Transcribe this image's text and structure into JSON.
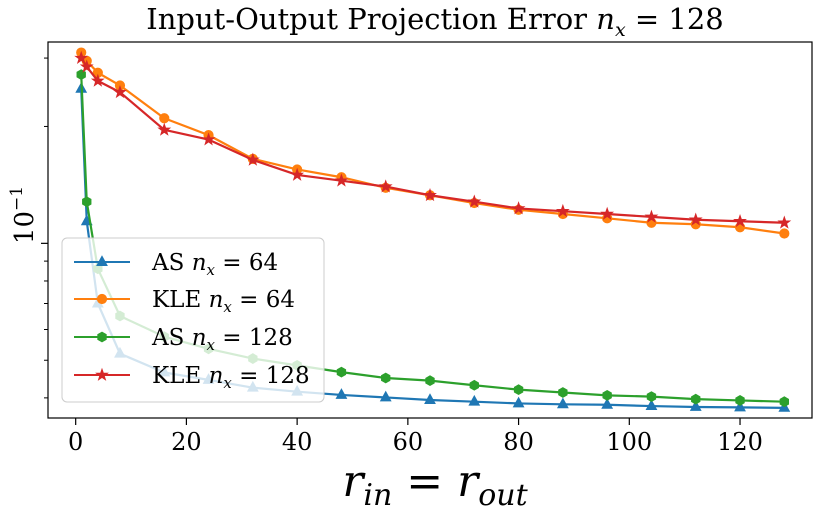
{
  "chart_data": {
    "type": "line",
    "title": "Input-Output Projection Error n_x = 128",
    "title_parts": {
      "text": "Input-Output Projection Error ",
      "var": "n",
      "sub": "x",
      "eq": " = 128"
    },
    "xlabel": "r_in = r_out",
    "xlabel_parts": {
      "r1": "r",
      "s1": "in",
      "eq": " = ",
      "r2": "r",
      "s2": "out"
    },
    "ylabel": "10^-1",
    "ylabel_parts": {
      "base": "10",
      "exp": "−1"
    },
    "xlim": [
      -5,
      133
    ],
    "ylim": [
      0.0355,
      0.33
    ],
    "yscale": "log",
    "xticks": [
      0,
      20,
      40,
      60,
      80,
      100,
      120
    ],
    "yticks_major": [
      0.1
    ],
    "legend_position": "lower-left",
    "grid": false,
    "series": [
      {
        "name": "AS n_x = 64",
        "legend": {
          "prefix": "AS ",
          "var": "n",
          "sub": "x",
          "eq": " = 64"
        },
        "color": "#1f77b4",
        "marker": "triangle",
        "x": [
          1,
          2,
          4,
          8,
          16,
          24,
          32,
          40,
          48,
          56,
          64,
          72,
          80,
          88,
          96,
          104,
          112,
          120,
          128
        ],
        "y": [
          0.25,
          0.114,
          0.07,
          0.052,
          0.0465,
          0.0445,
          0.0425,
          0.0415,
          0.0407,
          0.0401,
          0.0395,
          0.0391,
          0.0387,
          0.0385,
          0.0384,
          0.0381,
          0.0379,
          0.0378,
          0.0377
        ]
      },
      {
        "name": "KLE n_x = 64",
        "legend": {
          "prefix": "KLE ",
          "var": "n",
          "sub": "x",
          "eq": " = 64"
        },
        "color": "#ff7f0e",
        "marker": "circle",
        "x": [
          1,
          2,
          4,
          8,
          16,
          24,
          32,
          40,
          48,
          56,
          64,
          72,
          80,
          88,
          96,
          104,
          112,
          120,
          128
        ],
        "y": [
          0.31,
          0.295,
          0.275,
          0.255,
          0.21,
          0.19,
          0.165,
          0.155,
          0.148,
          0.139,
          0.133,
          0.127,
          0.122,
          0.119,
          0.116,
          0.113,
          0.112,
          0.11,
          0.106
        ]
      },
      {
        "name": "AS n_x = 128",
        "legend": {
          "prefix": "AS ",
          "var": "n",
          "sub": "x",
          "eq": " = 128"
        },
        "color": "#2ca02c",
        "marker": "hexagon",
        "x": [
          1,
          2,
          4,
          8,
          16,
          24,
          32,
          40,
          48,
          56,
          64,
          72,
          80,
          88,
          96,
          104,
          112,
          120,
          128
        ],
        "y": [
          0.272,
          0.128,
          0.086,
          0.065,
          0.0575,
          0.0535,
          0.0505,
          0.0485,
          0.0466,
          0.045,
          0.0443,
          0.0431,
          0.042,
          0.0413,
          0.0406,
          0.0403,
          0.0397,
          0.0394,
          0.0391
        ]
      },
      {
        "name": "KLE n_x = 128",
        "legend": {
          "prefix": "KLE ",
          "var": "n",
          "sub": "x",
          "eq": " = 128"
        },
        "color": "#d62728",
        "marker": "star",
        "x": [
          1,
          2,
          4,
          8,
          16,
          24,
          32,
          40,
          48,
          56,
          64,
          72,
          80,
          88,
          96,
          104,
          112,
          120,
          128
        ],
        "y": [
          0.3,
          0.285,
          0.262,
          0.245,
          0.196,
          0.185,
          0.164,
          0.15,
          0.145,
          0.14,
          0.133,
          0.128,
          0.123,
          0.121,
          0.119,
          0.117,
          0.115,
          0.114,
          0.113
        ]
      }
    ]
  }
}
